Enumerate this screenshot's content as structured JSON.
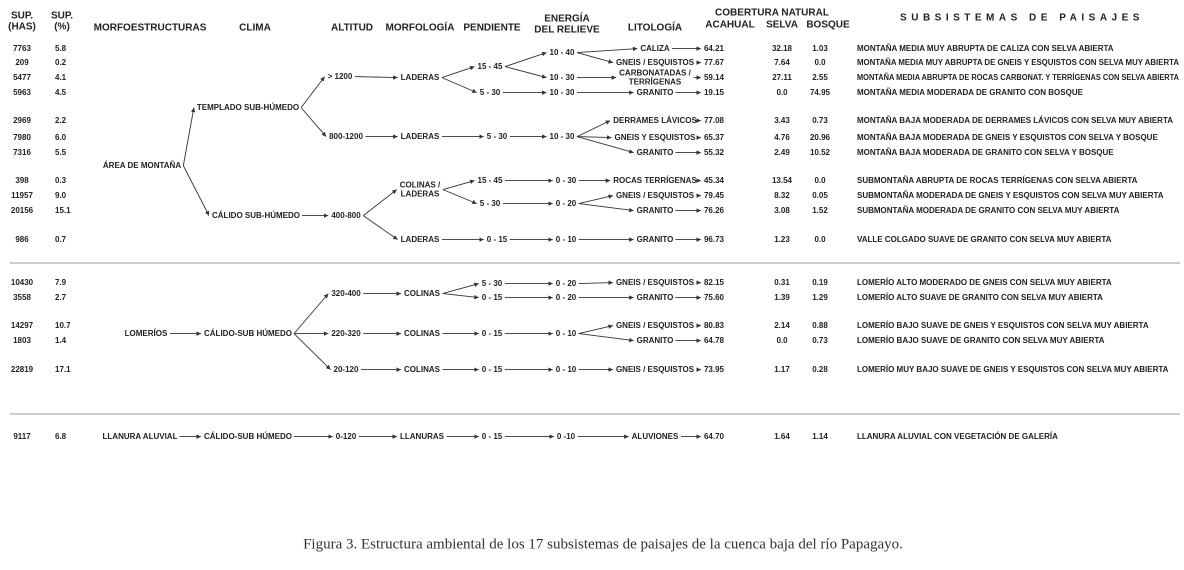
{
  "header": {
    "sup_has": [
      "SUP.",
      "(HAS)"
    ],
    "sup_pct": [
      "SUP.",
      "(%)"
    ],
    "morfoestructuras": "MORFOESTRUCTURAS",
    "clima": "CLIMA",
    "altitud": "ALTITUD",
    "morfologia": "MORFOLOGÍA",
    "pendiente": "PENDIENTE",
    "energia": [
      "ENERGÍA",
      "DEL RELIEVE"
    ],
    "litologia": "LITOLOGÍA",
    "cobertura": "COBERTURA NATURAL",
    "acahual": "ACAHUAL",
    "selva": "SELVA",
    "bosque": "BOSQUE",
    "subsistemas": "SUBSISTEMAS DE PAISAJES"
  },
  "nodes": [
    "ÁREA DE MONTAÑA",
    "LOMERÍOS",
    "LLANURA ALUVIAL",
    "TEMPLADO SUB-HÚMEDO",
    "CÁLIDO SUB-HÚMEDO",
    "CÁLIDO-SUB HÚMEDO",
    "CÁLIDO-SUB HÚMEDO",
    "> 1200",
    "800-1200",
    "400-800",
    "320-400",
    "220-320",
    "20-120",
    "0-120",
    "LADERAS",
    "LADERAS",
    [
      "COLINAS /",
      "LADERAS"
    ],
    "LADERAS",
    "COLINAS",
    "COLINAS",
    "COLINAS",
    "LLANURAS",
    "15 - 45",
    "5 - 30",
    "5 - 30",
    "15 - 45",
    "5 - 30",
    "0 - 15",
    "5 - 30",
    "0 - 15",
    "0 - 15",
    "0 - 15",
    "0 - 15",
    "10 - 40",
    "10 - 30",
    "10 - 30",
    "10 - 30",
    "0 - 30",
    "0 - 20",
    "0 - 10",
    "0 - 20",
    "0 - 20",
    "0 - 10",
    "0 - 10",
    "0 -10"
  ],
  "rows": [
    {
      "has": "7763",
      "pct": "5.8",
      "litologia": "CALIZA",
      "acahual": "64.21",
      "selva": "32.18",
      "bosque": "1.03",
      "subsistema": "MONTAÑA MEDIA MUY ABRUPTA DE CALIZA CON SELVA ABIERTA"
    },
    {
      "has": "209",
      "pct": "0.2",
      "litologia": "GNEIS / ESQUISTOS",
      "acahual": "77.67",
      "selva": "7.64",
      "bosque": "0.0",
      "subsistema": "MONTAÑA MEDIA MUY ABRUPTA DE GNEIS Y ESQUISTOS CON SELVA MUY ABIERTA"
    },
    {
      "has": "5477",
      "pct": "4.1",
      "litologia": [
        "CARBONATADAS /",
        "TERRÍGENAS"
      ],
      "acahual": "59.14",
      "selva": "27.11",
      "bosque": "2.55",
      "subsistema": "MONTAÑA MEDIA ABRUPTA DE ROCAS CARBONAT. Y TERRÍGENAS CON SELVA ABIERTA"
    },
    {
      "has": "5963",
      "pct": "4.5",
      "litologia": "GRANITO",
      "acahual": "19.15",
      "selva": "0.0",
      "bosque": "74.95",
      "subsistema": "MONTAÑA MEDIA MODERADA DE GRANITO CON BOSQUE"
    },
    {
      "has": "2969",
      "pct": "2.2",
      "litologia": "DERRAMES LÁVICOS",
      "acahual": "77.08",
      "selva": "3.43",
      "bosque": "0.73",
      "subsistema": "MONTAÑA BAJA MODERADA DE DERRAMES LÁVICOS CON SELVA MUY ABIERTA"
    },
    {
      "has": "7980",
      "pct": "6.0",
      "litologia": "GNEIS Y ESQUISTOS",
      "acahual": "65.37",
      "selva": "4.76",
      "bosque": "20.96",
      "subsistema": "MONTAÑA BAJA MODERADA DE GNEIS Y ESQUISTOS CON SELVA Y BOSQUE"
    },
    {
      "has": "7316",
      "pct": "5.5",
      "litologia": "GRANITO",
      "acahual": "55.32",
      "selva": "2.49",
      "bosque": "10.52",
      "subsistema": "MONTAÑA BAJA MODERADA DE GRANITO CON SELVA Y BOSQUE"
    },
    {
      "has": "398",
      "pct": "0.3",
      "litologia": "ROCAS TERRÍGENAS",
      "acahual": "45.34",
      "selva": "13.54",
      "bosque": "0.0",
      "subsistema": "SUBMONTAÑA ABRUPTA DE ROCAS TERRÍGENAS CON SELVA ABIERTA"
    },
    {
      "has": "11957",
      "pct": "9.0",
      "litologia": "GNEIS / ESQUISTOS",
      "acahual": "79.45",
      "selva": "8.32",
      "bosque": "0.05",
      "subsistema": "SUBMONTAÑA MODERADA DE GNEIS Y ESQUISTOS CON SELVA MUY ABIERTA"
    },
    {
      "has": "20156",
      "pct": "15.1",
      "litologia": "GRANITO",
      "acahual": "76.26",
      "selva": "3.08",
      "bosque": "1.52",
      "subsistema": "SUBMONTAÑA MODERADA DE GRANITO CON SELVA MUY ABIERTA"
    },
    {
      "has": "986",
      "pct": "0.7",
      "litologia": "GRANITO",
      "acahual": "96.73",
      "selva": "1.23",
      "bosque": "0.0",
      "subsistema": "VALLE COLGADO SUAVE DE GRANITO CON SELVA MUY ABIERTA"
    },
    {
      "has": "10430",
      "pct": "7.9",
      "litologia": "GNEIS / ESQUISTOS",
      "acahual": "82.15",
      "selva": "0.31",
      "bosque": "0.19",
      "subsistema": "LOMERÍO ALTO MODERADO DE GNEIS CON SELVA MUY ABIERTA"
    },
    {
      "has": "3558",
      "pct": "2.7",
      "litologia": "GRANITO",
      "acahual": "75.60",
      "selva": "1.39",
      "bosque": "1.29",
      "subsistema": "LOMERÍO ALTO SUAVE DE GRANITO CON SELVA MUY ABIERTA"
    },
    {
      "has": "14297",
      "pct": "10.7",
      "litologia": "GNEIS / ESQUISTOS",
      "acahual": "80.83",
      "selva": "2.14",
      "bosque": "0.88",
      "subsistema": "LOMERÍO BAJO SUAVE DE GNEIS Y ESQUISTOS CON SELVA MUY ABIERTA"
    },
    {
      "has": "1803",
      "pct": "1.4",
      "litologia": "GRANITO",
      "acahual": "64.78",
      "selva": "0.0",
      "bosque": "0.73",
      "subsistema": "LOMERÍO BAJO SUAVE DE GRANITO CON SELVA MUY ABIERTA"
    },
    {
      "has": "22819",
      "pct": "17.1",
      "litologia": "GNEIS / ESQUISTOS",
      "acahual": "73.95",
      "selva": "1.17",
      "bosque": "0.28",
      "subsistema": "LOMERÍO MUY BAJO SUAVE DE GNEIS Y ESQUISTOS CON SELVA MUY ABIERTA"
    },
    {
      "has": "9117",
      "pct": "6.8",
      "litologia": "ALUVIONES",
      "acahual": "64.70",
      "selva": "1.64",
      "bosque": "1.14",
      "subsistema": "LLANURA ALUVIAL CON VEGETACIÓN DE GALERÍA"
    }
  ],
  "caption": "Figura 3. Estructura ambiental de los 17 subsistemas de paisajes de la cuenca baja del río Papagayo."
}
